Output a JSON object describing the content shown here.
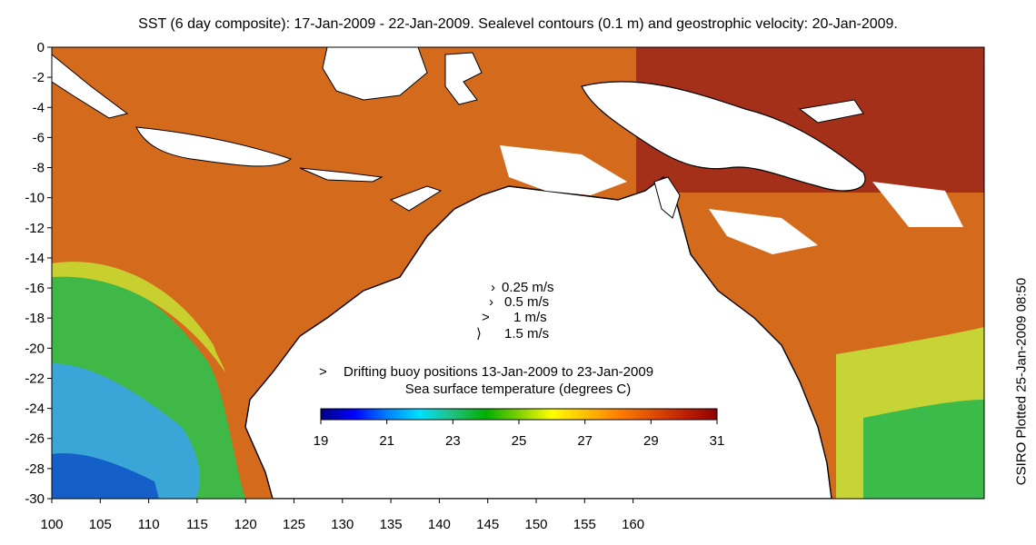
{
  "title": "SST (6 day composite): 17-Jan-2009 - 22-Jan-2009. Sealevel contours (0.1 m) and geostrophic velocity: 20-Jan-2009.",
  "side_note": "CSIRO Plotted 25-Jan-2009 08:50",
  "axes": {
    "x_ticks": [
      "100",
      "105",
      "110",
      "115",
      "120",
      "125",
      "130",
      "135",
      "140",
      "145",
      "150",
      "155",
      "160"
    ],
    "y_ticks": [
      "0",
      "-2",
      "-4",
      "-6",
      "-8",
      "-10",
      "-12",
      "-14",
      "-16",
      "-18",
      "-20",
      "-22",
      "-24",
      "-26",
      "-28",
      "-30"
    ]
  },
  "velocity_legend": [
    {
      "label": "0.25 m/s"
    },
    {
      "label": "0.5 m/s"
    },
    {
      "label": "1 m/s"
    },
    {
      "label": "1.5 m/s"
    }
  ],
  "buoy_legend": {
    "marker": ">",
    "label": "Drifting buoy positions 13-Jan-2009 to 23-Jan-2009",
    "color": "#ff00ff"
  },
  "colorbar": {
    "title": "Sea surface temperature (degrees C)",
    "ticks": [
      "19",
      "21",
      "23",
      "25",
      "27",
      "29",
      "31"
    ],
    "colors": [
      "#00007f",
      "#0000ff",
      "#0080ff",
      "#00e0ff",
      "#20c080",
      "#00b000",
      "#80d000",
      "#ffff00",
      "#ffc000",
      "#ff8000",
      "#e05000",
      "#c02000",
      "#900000"
    ]
  },
  "colors": {
    "land": "#ffffff",
    "warm_sea": "#d96a1a",
    "cool_sea": "#2ea3d8",
    "green_sea": "#3dbb4a",
    "coast": "#000000",
    "contour": "#e8e8e8"
  }
}
